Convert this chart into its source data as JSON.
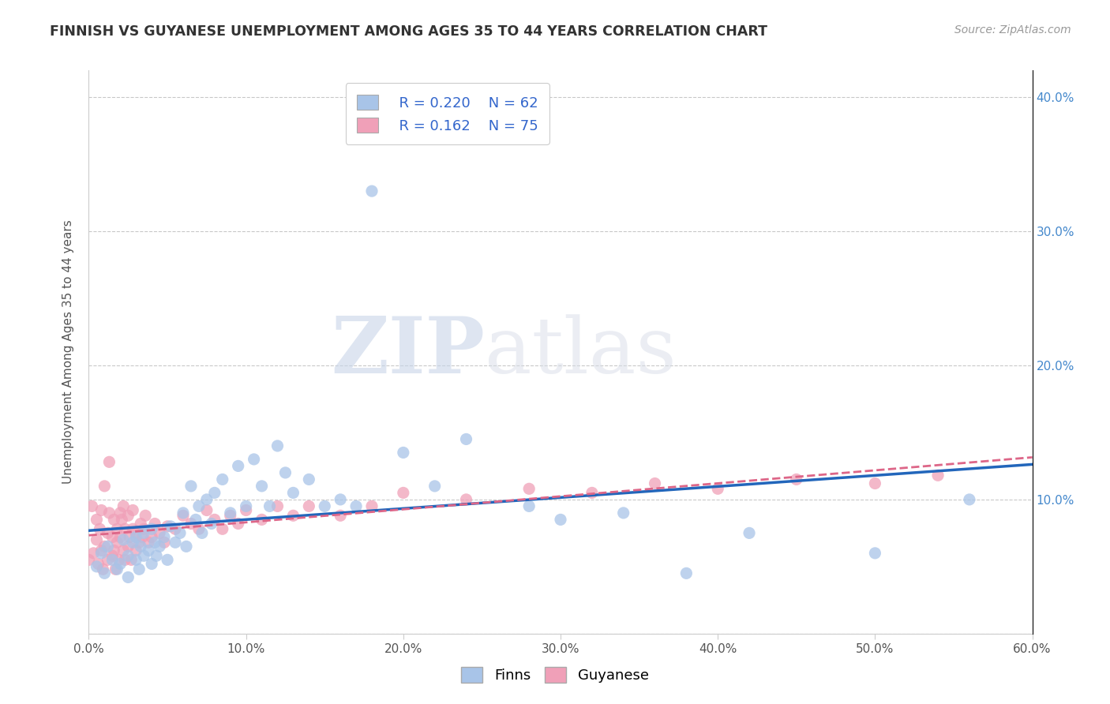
{
  "title": "FINNISH VS GUYANESE UNEMPLOYMENT AMONG AGES 35 TO 44 YEARS CORRELATION CHART",
  "source": "Source: ZipAtlas.com",
  "ylabel": "Unemployment Among Ages 35 to 44 years",
  "xlim": [
    0.0,
    0.6
  ],
  "ylim": [
    0.0,
    0.42
  ],
  "xticks": [
    0.0,
    0.1,
    0.2,
    0.3,
    0.4,
    0.5,
    0.6
  ],
  "xticklabels": [
    "0.0%",
    "10.0%",
    "20.0%",
    "30.0%",
    "40.0%",
    "50.0%",
    "60.0%"
  ],
  "yticks": [
    0.0,
    0.1,
    0.2,
    0.3,
    0.4
  ],
  "yticklabels_right": [
    "",
    "10.0%",
    "20.0%",
    "30.0%",
    "40.0%"
  ],
  "legend_r_finns": "R = 0.220",
  "legend_n_finns": "N = 62",
  "legend_r_guyanese": "R = 0.162",
  "legend_n_guyanese": "N = 75",
  "finns_color": "#a8c4e8",
  "guyanese_color": "#f0a0b8",
  "finns_line_color": "#2266bb",
  "guyanese_line_color": "#dd6688",
  "watermark_zip": "ZIP",
  "watermark_atlas": "atlas",
  "background_color": "#ffffff",
  "finns_x": [
    0.005,
    0.008,
    0.01,
    0.012,
    0.015,
    0.018,
    0.02,
    0.022,
    0.025,
    0.025,
    0.028,
    0.03,
    0.03,
    0.032,
    0.033,
    0.035,
    0.035,
    0.038,
    0.04,
    0.04,
    0.042,
    0.043,
    0.045,
    0.048,
    0.05,
    0.052,
    0.055,
    0.058,
    0.06,
    0.062,
    0.065,
    0.068,
    0.07,
    0.072,
    0.075,
    0.078,
    0.08,
    0.085,
    0.09,
    0.095,
    0.1,
    0.105,
    0.11,
    0.115,
    0.12,
    0.125,
    0.13,
    0.14,
    0.15,
    0.16,
    0.17,
    0.18,
    0.2,
    0.22,
    0.24,
    0.28,
    0.3,
    0.34,
    0.38,
    0.42,
    0.5,
    0.56
  ],
  "finns_y": [
    0.05,
    0.06,
    0.045,
    0.065,
    0.055,
    0.048,
    0.052,
    0.07,
    0.058,
    0.042,
    0.068,
    0.055,
    0.072,
    0.048,
    0.065,
    0.058,
    0.075,
    0.062,
    0.052,
    0.078,
    0.068,
    0.058,
    0.065,
    0.072,
    0.055,
    0.08,
    0.068,
    0.075,
    0.09,
    0.065,
    0.11,
    0.085,
    0.095,
    0.075,
    0.1,
    0.082,
    0.105,
    0.115,
    0.09,
    0.125,
    0.095,
    0.13,
    0.11,
    0.095,
    0.14,
    0.12,
    0.105,
    0.115,
    0.095,
    0.1,
    0.095,
    0.33,
    0.135,
    0.11,
    0.145,
    0.095,
    0.085,
    0.09,
    0.045,
    0.075,
    0.06,
    0.1
  ],
  "guyanese_x": [
    0.0,
    0.002,
    0.003,
    0.005,
    0.005,
    0.006,
    0.007,
    0.008,
    0.008,
    0.009,
    0.01,
    0.01,
    0.012,
    0.012,
    0.013,
    0.013,
    0.015,
    0.015,
    0.016,
    0.016,
    0.017,
    0.018,
    0.018,
    0.019,
    0.02,
    0.02,
    0.021,
    0.022,
    0.022,
    0.023,
    0.023,
    0.025,
    0.025,
    0.026,
    0.027,
    0.028,
    0.028,
    0.03,
    0.03,
    0.032,
    0.033,
    0.034,
    0.035,
    0.036,
    0.038,
    0.04,
    0.042,
    0.045,
    0.048,
    0.05,
    0.055,
    0.06,
    0.065,
    0.07,
    0.075,
    0.08,
    0.085,
    0.09,
    0.095,
    0.1,
    0.11,
    0.12,
    0.13,
    0.14,
    0.16,
    0.18,
    0.2,
    0.24,
    0.28,
    0.32,
    0.36,
    0.4,
    0.45,
    0.5,
    0.54
  ],
  "guyanese_y": [
    0.055,
    0.095,
    0.06,
    0.07,
    0.085,
    0.052,
    0.078,
    0.062,
    0.092,
    0.048,
    0.065,
    0.11,
    0.055,
    0.075,
    0.09,
    0.128,
    0.058,
    0.072,
    0.062,
    0.085,
    0.048,
    0.078,
    0.068,
    0.055,
    0.09,
    0.072,
    0.085,
    0.062,
    0.095,
    0.055,
    0.078,
    0.065,
    0.088,
    0.072,
    0.055,
    0.078,
    0.092,
    0.062,
    0.075,
    0.068,
    0.082,
    0.072,
    0.078,
    0.088,
    0.068,
    0.072,
    0.082,
    0.075,
    0.068,
    0.08,
    0.078,
    0.088,
    0.082,
    0.078,
    0.092,
    0.085,
    0.078,
    0.088,
    0.082,
    0.092,
    0.085,
    0.095,
    0.088,
    0.095,
    0.088,
    0.095,
    0.105,
    0.1,
    0.108,
    0.105,
    0.112,
    0.108,
    0.115,
    0.112,
    0.118
  ]
}
